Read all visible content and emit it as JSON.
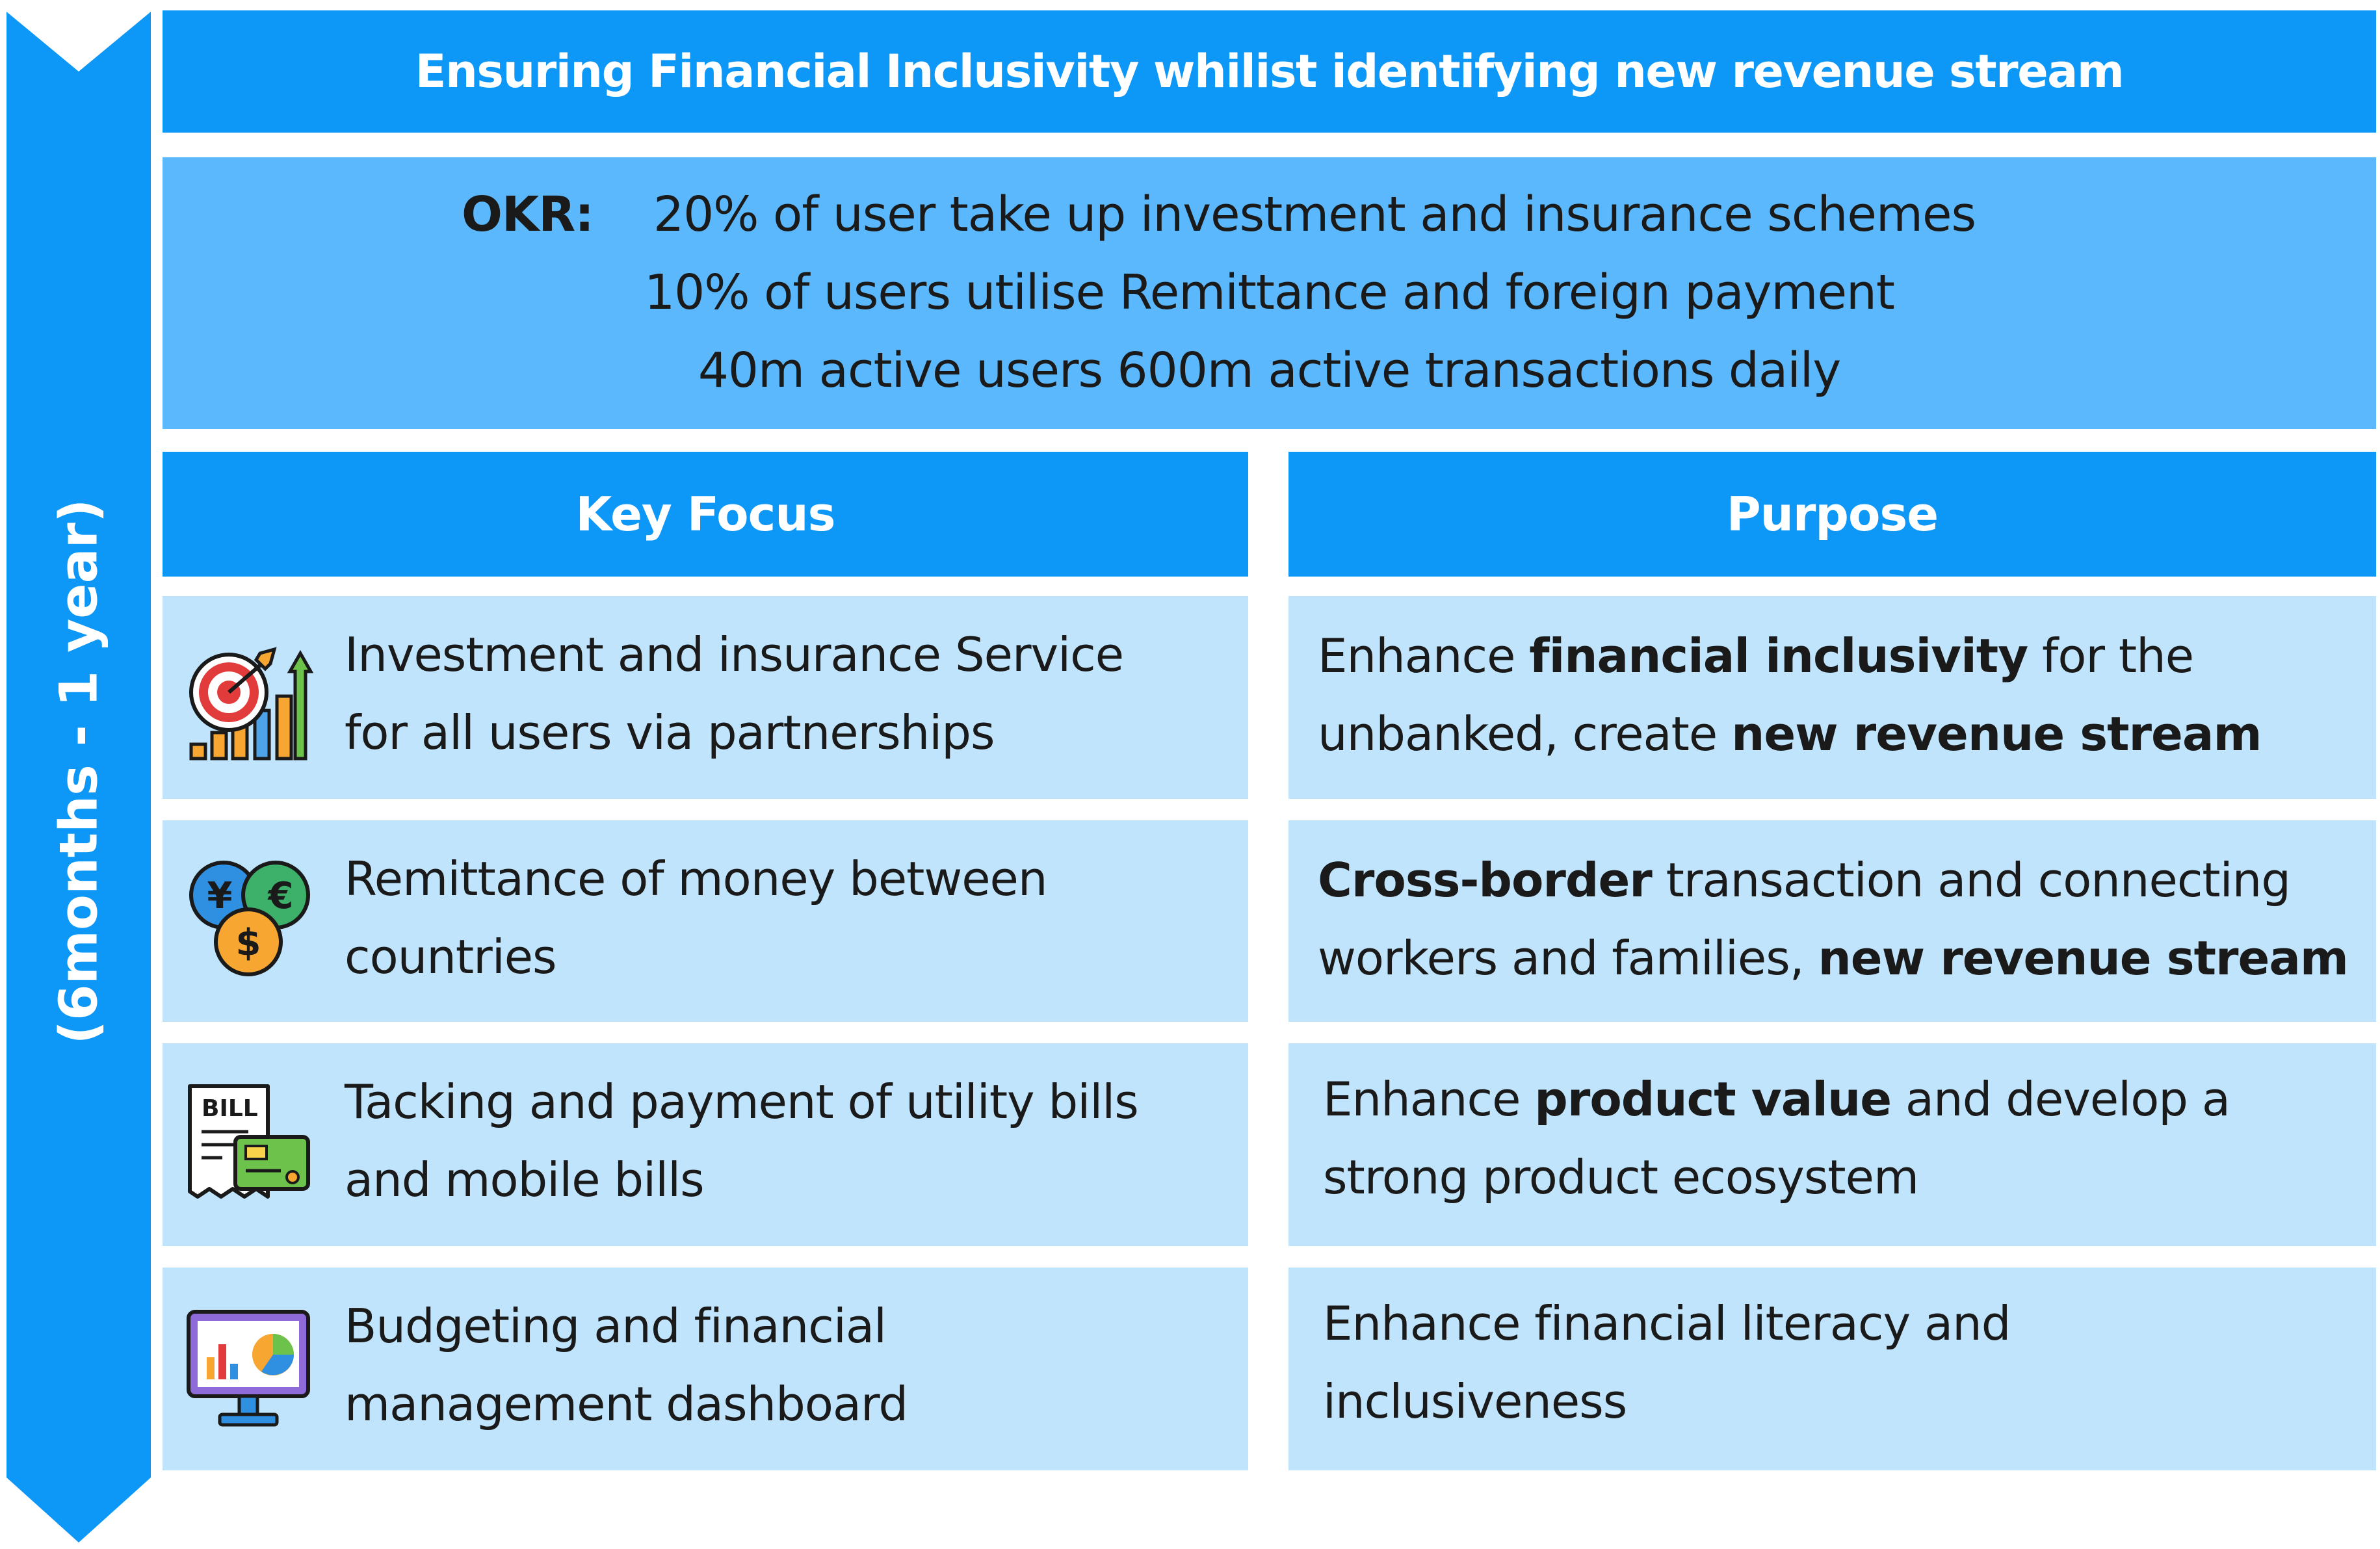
{
  "timeline": {
    "label": "(6months - 1 year)",
    "color": "#0d97f7"
  },
  "banner": {
    "title": "Ensuring Financial Inclusivity whilist identifying new revenue stream"
  },
  "okr": {
    "label": "OKR:",
    "lines": [
      "20% of user take up investment and insurance schemes",
      "10% of users utilise Remittance and foreign payment",
      "40m active users 600m active transactions daily"
    ]
  },
  "columns": {
    "focus": "Key Focus",
    "purpose": "Purpose"
  },
  "rows": [
    {
      "icon": "investment-target-chart-icon",
      "focus": [
        "Investment and insurance Service",
        "for all users via partnerships"
      ],
      "purpose": [
        [
          {
            "t": "Enhance ",
            "b": false
          },
          {
            "t": "financial inclusivity",
            "b": true
          },
          {
            "t": " for the",
            "b": false
          }
        ],
        [
          {
            "t": "unbanked, create ",
            "b": false
          },
          {
            "t": "new revenue stream",
            "b": true
          }
        ]
      ]
    },
    {
      "icon": "currency-coins-icon",
      "focus": [
        "Remittance of money between",
        "countries"
      ],
      "purpose": [
        [
          {
            "t": "Cross-border",
            "b": true
          },
          {
            "t": " transaction and connecting",
            "b": false
          }
        ],
        [
          {
            "t": "workers and families, ",
            "b": false
          },
          {
            "t": "new revenue stream",
            "b": true
          }
        ]
      ]
    },
    {
      "icon": "bill-card-icon",
      "icon_text": "BILL",
      "focus": [
        "Tacking and payment of utility bills",
        "and mobile bills"
      ],
      "purpose": [
        [
          {
            "t": "Enhance ",
            "b": false
          },
          {
            "t": "product value",
            "b": true
          },
          {
            "t": " and develop a",
            "b": false
          }
        ],
        [
          {
            "t": "strong product ecosystem",
            "b": false
          }
        ]
      ]
    },
    {
      "icon": "dashboard-monitor-icon",
      "focus": [
        "Budgeting and financial",
        "management dashboard"
      ],
      "purpose": [
        [
          {
            "t": "Enhance financial literacy and",
            "b": false
          }
        ],
        [
          {
            "t": "inclusiveness",
            "b": false
          }
        ]
      ]
    }
  ],
  "icon_glyphs": {
    "yen": "¥",
    "euro": "€",
    "dollar": "$"
  },
  "colors": {
    "primary": "#0d97f7",
    "okr_bg": "#5bb8fc",
    "row_bg": "#c0e4fc",
    "text": "#1a1a1a"
  }
}
